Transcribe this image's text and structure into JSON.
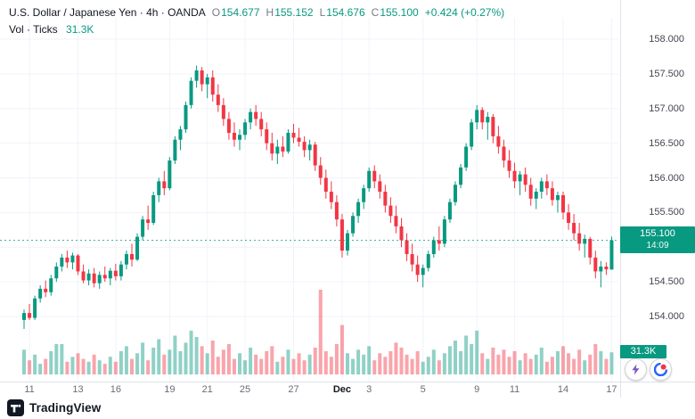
{
  "legend": {
    "title": "U.S. Dollar / Japanese Yen · 4h · OANDA",
    "ohlc": {
      "o_label": "O",
      "o": "154.677",
      "h_label": "H",
      "h": "155.152",
      "l_label": "L",
      "l": "154.676",
      "c_label": "C",
      "c": "155.100",
      "change": "+0.424 (+0.27%)"
    },
    "indicator": {
      "name": "Vol · Ticks",
      "value": "31.3K"
    }
  },
  "colors": {
    "up": "#089981",
    "down": "#f23645",
    "vol_up": "rgba(8,153,129,0.45)",
    "vol_down": "rgba(242,54,69,0.45)",
    "grid": "#f0f3fa",
    "axis_line": "#e0e3eb",
    "badge_bg": "#089981",
    "text": "#131722",
    "muted": "#787b86"
  },
  "price_axis": {
    "labels": [
      {
        "text": "158.000",
        "value": 158.0
      },
      {
        "text": "157.500",
        "value": 157.5
      },
      {
        "text": "157.000",
        "value": 157.0
      },
      {
        "text": "156.500",
        "value": 156.5
      },
      {
        "text": "156.000",
        "value": 156.0
      },
      {
        "text": "155.500",
        "value": 155.5
      },
      {
        "text": "155.000",
        "value": 155.0
      },
      {
        "text": "154.500",
        "value": 154.5
      },
      {
        "text": "154.000",
        "value": 154.0
      }
    ],
    "badge": {
      "price": "155.100",
      "countdown": "14:09"
    },
    "volume_badge": "31.3K"
  },
  "time_axis": {
    "labels": [
      {
        "text": "11",
        "i": 1,
        "major": false
      },
      {
        "text": "13",
        "i": 10,
        "major": false
      },
      {
        "text": "16",
        "i": 17,
        "major": false
      },
      {
        "text": "19",
        "i": 27,
        "major": false
      },
      {
        "text": "21",
        "i": 34,
        "major": false
      },
      {
        "text": "25",
        "i": 41,
        "major": false
      },
      {
        "text": "27",
        "i": 50,
        "major": false
      },
      {
        "text": "Dec",
        "i": 59,
        "major": true
      },
      {
        "text": "3",
        "i": 64,
        "major": false
      },
      {
        "text": "5",
        "i": 74,
        "major": false
      },
      {
        "text": "9",
        "i": 84,
        "major": false
      },
      {
        "text": "11",
        "i": 91,
        "major": false
      },
      {
        "text": "14",
        "i": 100,
        "major": false
      },
      {
        "text": "17",
        "i": 109,
        "major": false
      }
    ]
  },
  "footer": {
    "brand": "TradingView"
  },
  "icons": [
    "lightning-icon",
    "broker-logo-icon",
    "tradingview-logo-icon"
  ],
  "chart_data": {
    "type": "candlestick",
    "title": "U.S. Dollar / Japanese Yen · 4h · OANDA",
    "symbol": "USD/JPY",
    "interval": "4h",
    "source": "OANDA",
    "ylim": [
      153.6,
      158.2
    ],
    "y_ticks": [
      154.0,
      154.5,
      155.0,
      155.5,
      156.0,
      156.5,
      157.0,
      157.5,
      158.0
    ],
    "grid": true,
    "last_price": 155.1,
    "last_bar": {
      "o": 154.677,
      "h": 155.152,
      "l": 154.676,
      "c": 155.1,
      "change": 0.424,
      "change_pct": 0.27,
      "volume": "31.3K",
      "countdown": "14:09"
    },
    "candles": [
      [
        153.95,
        154.1,
        153.82,
        154.05
      ],
      [
        154.05,
        154.18,
        153.95,
        153.98
      ],
      [
        153.98,
        154.3,
        153.95,
        154.26
      ],
      [
        154.26,
        154.45,
        154.2,
        154.4
      ],
      [
        154.4,
        154.52,
        154.28,
        154.35
      ],
      [
        154.35,
        154.6,
        154.3,
        154.55
      ],
      [
        154.55,
        154.78,
        154.5,
        154.72
      ],
      [
        154.72,
        154.9,
        154.65,
        154.85
      ],
      [
        154.85,
        154.95,
        154.7,
        154.78
      ],
      [
        154.78,
        154.92,
        154.68,
        154.88
      ],
      [
        154.88,
        154.9,
        154.6,
        154.65
      ],
      [
        154.65,
        154.75,
        154.48,
        154.52
      ],
      [
        154.52,
        154.68,
        154.45,
        154.62
      ],
      [
        154.62,
        154.7,
        154.42,
        154.48
      ],
      [
        154.48,
        154.65,
        154.4,
        154.6
      ],
      [
        154.6,
        154.72,
        154.5,
        154.55
      ],
      [
        154.55,
        154.7,
        154.45,
        154.66
      ],
      [
        154.66,
        154.76,
        154.52,
        154.58
      ],
      [
        154.58,
        154.8,
        154.52,
        154.75
      ],
      [
        154.75,
        154.95,
        154.68,
        154.9
      ],
      [
        154.9,
        155.05,
        154.72,
        154.82
      ],
      [
        154.82,
        155.2,
        154.8,
        155.15
      ],
      [
        155.15,
        155.45,
        155.1,
        155.4
      ],
      [
        155.4,
        155.6,
        155.25,
        155.35
      ],
      [
        155.35,
        155.8,
        155.32,
        155.75
      ],
      [
        155.75,
        156.0,
        155.65,
        155.95
      ],
      [
        155.95,
        156.1,
        155.75,
        155.85
      ],
      [
        155.85,
        156.3,
        155.82,
        156.25
      ],
      [
        156.25,
        156.6,
        156.2,
        156.55
      ],
      [
        156.55,
        156.75,
        156.4,
        156.7
      ],
      [
        156.7,
        157.1,
        156.65,
        157.05
      ],
      [
        157.05,
        157.45,
        157.0,
        157.4
      ],
      [
        157.4,
        157.62,
        157.3,
        157.55
      ],
      [
        157.55,
        157.6,
        157.25,
        157.35
      ],
      [
        157.35,
        157.5,
        157.15,
        157.45
      ],
      [
        157.45,
        157.55,
        157.1,
        157.2
      ],
      [
        157.2,
        157.35,
        156.95,
        157.05
      ],
      [
        157.05,
        157.15,
        156.75,
        156.85
      ],
      [
        156.85,
        156.95,
        156.55,
        156.65
      ],
      [
        156.65,
        156.8,
        156.45,
        156.55
      ],
      [
        156.55,
        156.7,
        156.4,
        156.62
      ],
      [
        156.62,
        156.85,
        156.55,
        156.8
      ],
      [
        156.8,
        157.0,
        156.7,
        156.95
      ],
      [
        156.95,
        157.05,
        156.75,
        156.85
      ],
      [
        156.85,
        156.95,
        156.6,
        156.7
      ],
      [
        156.7,
        156.8,
        156.4,
        156.5
      ],
      [
        156.5,
        156.65,
        156.25,
        156.35
      ],
      [
        156.35,
        156.55,
        156.2,
        156.45
      ],
      [
        156.45,
        156.6,
        156.3,
        156.38
      ],
      [
        156.38,
        156.7,
        156.35,
        156.65
      ],
      [
        156.65,
        156.78,
        156.5,
        156.58
      ],
      [
        156.58,
        156.72,
        156.45,
        156.52
      ],
      [
        156.52,
        156.6,
        156.3,
        156.4
      ],
      [
        156.4,
        156.55,
        156.25,
        156.48
      ],
      [
        156.48,
        156.52,
        156.1,
        156.18
      ],
      [
        156.18,
        156.3,
        155.9,
        156.0
      ],
      [
        156.0,
        156.12,
        155.7,
        155.8
      ],
      [
        155.8,
        155.95,
        155.55,
        155.65
      ],
      [
        155.65,
        155.75,
        155.3,
        155.4
      ],
      [
        155.4,
        155.48,
        154.85,
        154.95
      ],
      [
        154.95,
        155.25,
        154.88,
        155.2
      ],
      [
        155.2,
        155.5,
        155.15,
        155.45
      ],
      [
        155.45,
        155.7,
        155.35,
        155.65
      ],
      [
        155.65,
        155.9,
        155.55,
        155.85
      ],
      [
        155.85,
        156.15,
        155.8,
        156.1
      ],
      [
        156.1,
        156.18,
        155.85,
        155.95
      ],
      [
        155.95,
        156.05,
        155.7,
        155.8
      ],
      [
        155.8,
        155.9,
        155.5,
        155.6
      ],
      [
        155.6,
        155.72,
        155.35,
        155.45
      ],
      [
        155.45,
        155.6,
        155.2,
        155.3
      ],
      [
        155.3,
        155.42,
        155.0,
        155.1
      ],
      [
        155.1,
        155.2,
        154.8,
        154.9
      ],
      [
        154.9,
        155.05,
        154.65,
        154.75
      ],
      [
        154.75,
        154.88,
        154.5,
        154.6
      ],
      [
        154.6,
        154.75,
        154.42,
        154.7
      ],
      [
        154.7,
        154.95,
        154.65,
        154.9
      ],
      [
        154.9,
        155.15,
        154.85,
        155.1
      ],
      [
        155.1,
        155.3,
        154.95,
        155.05
      ],
      [
        155.05,
        155.45,
        155.0,
        155.4
      ],
      [
        155.4,
        155.7,
        155.35,
        155.65
      ],
      [
        155.65,
        155.95,
        155.6,
        155.9
      ],
      [
        155.9,
        156.2,
        155.85,
        156.15
      ],
      [
        156.15,
        156.5,
        156.1,
        156.45
      ],
      [
        156.45,
        156.85,
        156.4,
        156.8
      ],
      [
        156.8,
        157.05,
        156.7,
        156.98
      ],
      [
        156.98,
        157.02,
        156.7,
        156.8
      ],
      [
        156.8,
        156.95,
        156.55,
        156.88
      ],
      [
        156.88,
        156.92,
        156.5,
        156.6
      ],
      [
        156.6,
        156.75,
        156.35,
        156.45
      ],
      [
        156.45,
        156.55,
        156.15,
        156.25
      ],
      [
        156.25,
        156.4,
        156.0,
        156.1
      ],
      [
        156.1,
        156.22,
        155.85,
        155.95
      ],
      [
        155.95,
        156.1,
        155.75,
        156.05
      ],
      [
        156.05,
        156.15,
        155.8,
        155.9
      ],
      [
        155.9,
        156.0,
        155.6,
        155.7
      ],
      [
        155.7,
        155.85,
        155.55,
        155.8
      ],
      [
        155.8,
        156.0,
        155.7,
        155.95
      ],
      [
        155.95,
        156.05,
        155.75,
        155.85
      ],
      [
        155.85,
        155.95,
        155.6,
        155.68
      ],
      [
        155.68,
        155.8,
        155.5,
        155.75
      ],
      [
        155.75,
        155.8,
        155.4,
        155.5
      ],
      [
        155.5,
        155.62,
        155.25,
        155.35
      ],
      [
        155.35,
        155.48,
        155.1,
        155.2
      ],
      [
        155.2,
        155.35,
        154.95,
        155.05
      ],
      [
        155.05,
        155.18,
        154.85,
        155.12
      ],
      [
        155.12,
        155.15,
        154.75,
        154.85
      ],
      [
        154.85,
        154.95,
        154.55,
        154.65
      ],
      [
        154.65,
        154.8,
        154.42,
        154.72
      ],
      [
        154.72,
        154.78,
        154.6,
        154.68
      ],
      [
        154.677,
        155.152,
        154.676,
        155.1
      ]
    ],
    "volumes_k": [
      35,
      20,
      28,
      15,
      22,
      33,
      43,
      43,
      18,
      25,
      30,
      22,
      18,
      28,
      20,
      15,
      25,
      18,
      33,
      40,
      22,
      30,
      45,
      20,
      38,
      50,
      28,
      35,
      55,
      33,
      45,
      62,
      53,
      40,
      30,
      48,
      25,
      35,
      43,
      22,
      30,
      20,
      38,
      28,
      22,
      33,
      40,
      18,
      25,
      35,
      22,
      30,
      20,
      28,
      38,
      120,
      33,
      25,
      43,
      70,
      30,
      22,
      35,
      28,
      40,
      20,
      30,
      25,
      33,
      45,
      38,
      28,
      22,
      33,
      18,
      25,
      35,
      20,
      30,
      40,
      48,
      33,
      55,
      43,
      62,
      30,
      22,
      38,
      28,
      35,
      25,
      33,
      20,
      30,
      22,
      28,
      38,
      18,
      25,
      33,
      40,
      30,
      22,
      35,
      20,
      28,
      43,
      33,
      22,
      31.3
    ]
  }
}
